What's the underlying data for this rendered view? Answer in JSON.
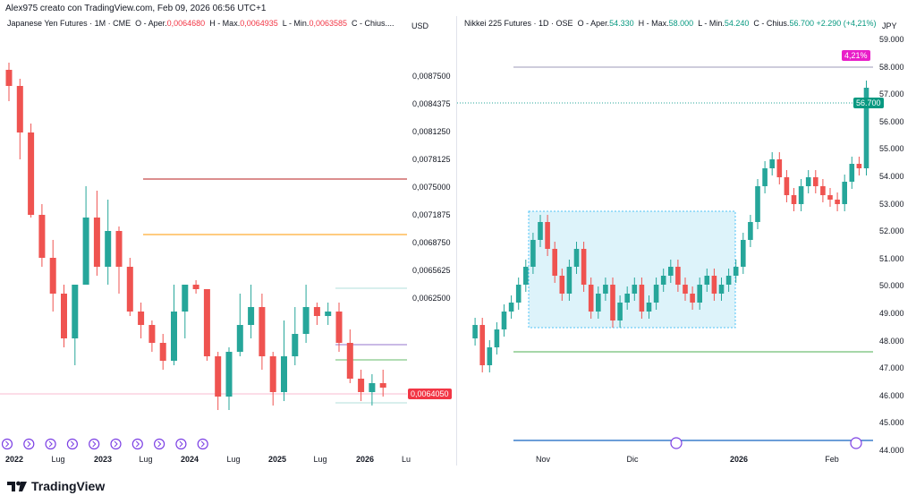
{
  "header": {
    "text": "Alex975 creato con TradingView.com, Feb 09, 2026 06:56 UTC+1"
  },
  "left_chart": {
    "title": "Japanese Yen Futures · 1M · CME",
    "o_label": "O - Aper.",
    "o_value": "0,0064680",
    "h_label": "H - Max.",
    "h_value": "0,0064935",
    "l_label": "L - Min.",
    "l_value": "0,0063585",
    "c_label": "C - Chius....",
    "currency": "USD",
    "last_price": "0,0064050",
    "y_ticks": [
      "0,0087500",
      "0,0084375",
      "0,0081250",
      "0,0078125",
      "0,0075000",
      "0,0071875",
      "0,0068750",
      "0,0065625",
      "0,0062500"
    ],
    "x_ticks": [
      "2022",
      "Lug",
      "2023",
      "Lug",
      "2024",
      "Lug",
      "2025",
      "Lug",
      "2026",
      "Lu"
    ],
    "colors": {
      "up": "#26a69a",
      "down": "#ef5350"
    }
  },
  "right_chart": {
    "title": "Nikkei 225 Futures · 1D · OSE",
    "o_label": "O - Aper.",
    "o_value": "54.330",
    "h_label": "H - Max.",
    "h_value": "58.000",
    "l_label": "L - Min.",
    "l_value": "54.240",
    "c_label": "C - Chius.",
    "c_value": "56.700",
    "change": "+2.290 (+4,21%)",
    "currency": "JPY",
    "last_price": "56.700",
    "pct_badge": "4,21%",
    "y_ticks": [
      "59.000",
      "58.000",
      "57.000",
      "56.000",
      "55.000",
      "54.000",
      "53.000",
      "52.000",
      "51.000",
      "50.000",
      "49.000",
      "48.000",
      "47.000",
      "46.000",
      "45.000",
      "44.000"
    ],
    "x_ticks": [
      "Nov",
      "Dic",
      "2026",
      "Feb"
    ],
    "colors": {
      "up": "#26a69a",
      "down": "#ef5350",
      "badge": "#e91ec9",
      "box": "#b3e5f5"
    }
  },
  "footer": {
    "brand": "TradingView"
  }
}
